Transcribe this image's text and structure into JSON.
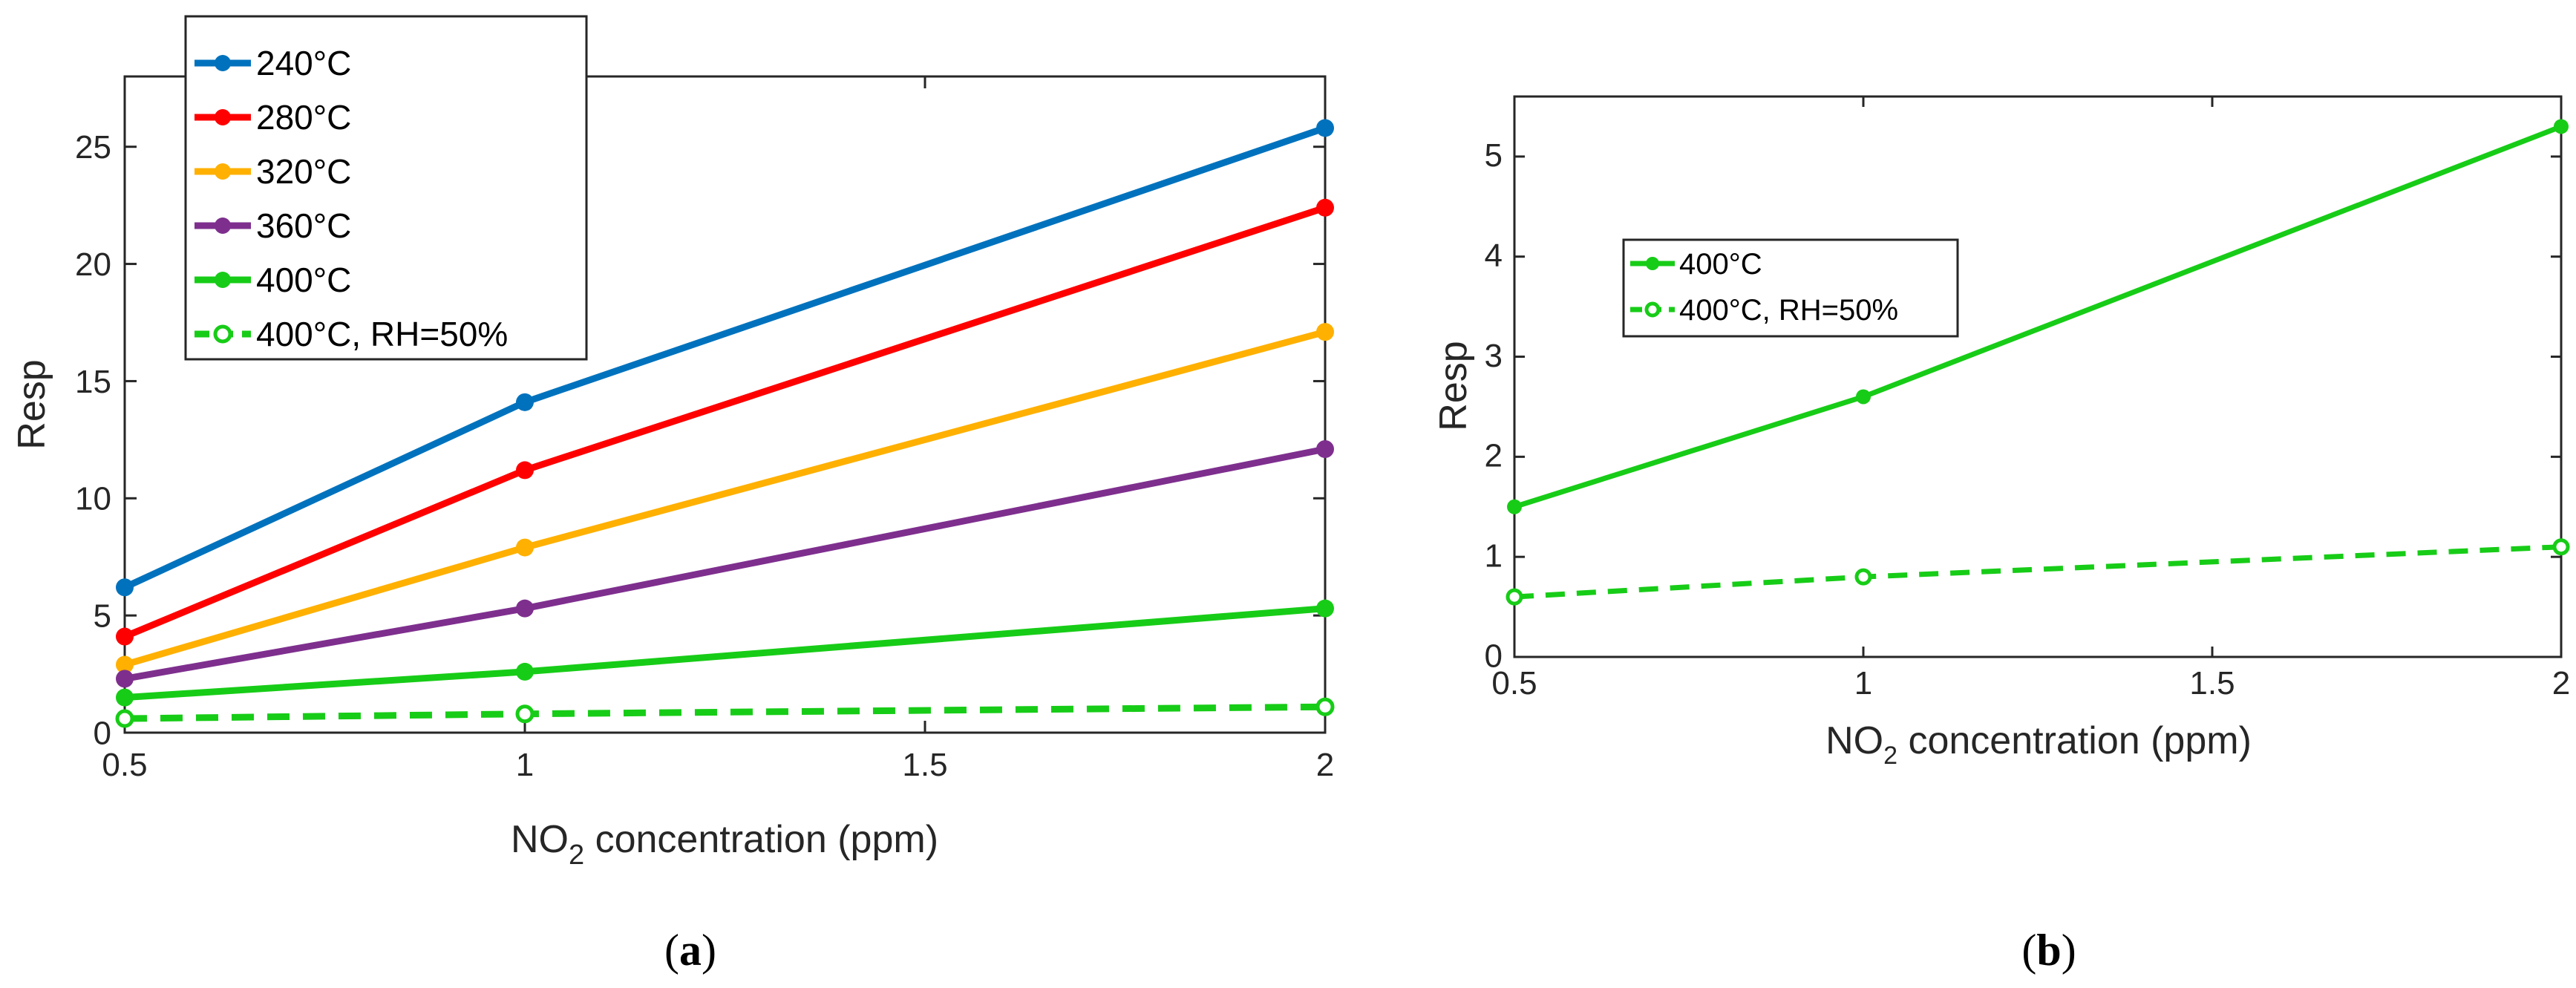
{
  "chart_data": [
    {
      "type": "line",
      "panel": "(a)",
      "caption_letter": "a",
      "xlabel": "NO",
      "xlabel_sub": "2",
      "xlabel_rest": " concentration (ppm)",
      "ylabel": "Resp",
      "xlim": [
        0.5,
        2
      ],
      "ylim": [
        0,
        28
      ],
      "xticks": [
        "0.5",
        "1",
        "1.5",
        "2"
      ],
      "yticks": [
        "0",
        "5",
        "10",
        "15",
        "20",
        "25"
      ],
      "legend_position": "top-left",
      "series": [
        {
          "name": "240°C",
          "color": "#0072BD",
          "dashed": false,
          "hollow": false,
          "x": [
            0.5,
            1,
            2
          ],
          "values": [
            6.2,
            14.1,
            25.8
          ]
        },
        {
          "name": "280°C",
          "color": "#FF0000",
          "dashed": false,
          "hollow": false,
          "x": [
            0.5,
            1,
            2
          ],
          "values": [
            4.1,
            11.2,
            22.4
          ]
        },
        {
          "name": "320°C",
          "color": "#FFB000",
          "dashed": false,
          "hollow": false,
          "x": [
            0.5,
            1,
            2
          ],
          "values": [
            2.9,
            7.9,
            17.1
          ]
        },
        {
          "name": "360°C",
          "color": "#7E2F8E",
          "dashed": false,
          "hollow": false,
          "x": [
            0.5,
            1,
            2
          ],
          "values": [
            2.3,
            5.3,
            12.1
          ]
        },
        {
          "name": "400°C",
          "color": "#17CC17",
          "dashed": false,
          "hollow": false,
          "x": [
            0.5,
            1,
            2
          ],
          "values": [
            1.5,
            2.6,
            5.3
          ]
        },
        {
          "name": "400°C, RH=50%",
          "color": "#17CC17",
          "dashed": true,
          "hollow": true,
          "x": [
            0.5,
            1,
            2
          ],
          "values": [
            0.6,
            0.8,
            1.1
          ]
        }
      ]
    },
    {
      "type": "line",
      "panel": "(b)",
      "caption_letter": "b",
      "xlabel": "NO",
      "xlabel_sub": "2",
      "xlabel_rest": " concentration (ppm)",
      "ylabel": "Resp",
      "xlim": [
        0.5,
        2
      ],
      "ylim": [
        0,
        5.6
      ],
      "xticks": [
        "0.5",
        "1",
        "1.5",
        "2"
      ],
      "yticks": [
        "0",
        "1",
        "2",
        "3",
        "4",
        "5"
      ],
      "legend_position": "center-left",
      "series": [
        {
          "name": "400°C",
          "color": "#17CC17",
          "dashed": false,
          "hollow": false,
          "x": [
            0.5,
            1,
            2
          ],
          "values": [
            1.5,
            2.6,
            5.3
          ]
        },
        {
          "name": "400°C, RH=50%",
          "color": "#17CC17",
          "dashed": true,
          "hollow": true,
          "x": [
            0.5,
            1,
            2
          ],
          "values": [
            0.6,
            0.8,
            1.1
          ]
        }
      ]
    }
  ]
}
